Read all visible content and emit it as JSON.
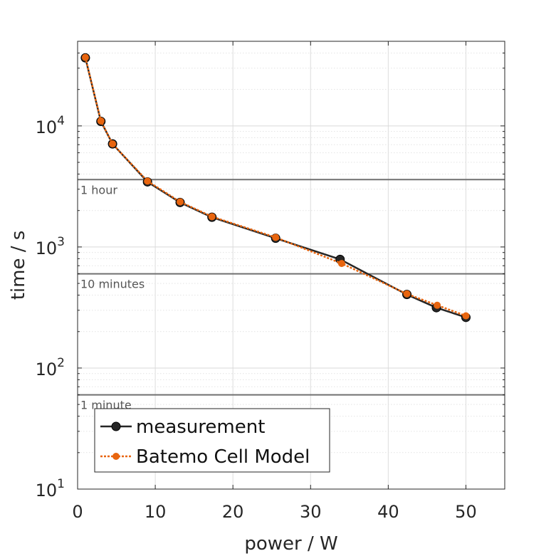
{
  "chart_data": {
    "type": "line",
    "title": "",
    "xlabel": "power / W",
    "ylabel": "time / s",
    "xlim": [
      0,
      55
    ],
    "ylim": [
      10,
      50000
    ],
    "yscale": "log",
    "grid": true,
    "x_ticks": [
      "0",
      "10",
      "20",
      "30",
      "40",
      "50"
    ],
    "y_ticks": [
      {
        "base": "10",
        "exp": "1"
      },
      {
        "base": "10",
        "exp": "2"
      },
      {
        "base": "10",
        "exp": "3"
      },
      {
        "base": "10",
        "exp": "4"
      }
    ],
    "legend_position": "bottom-left",
    "reference_lines": [
      {
        "label": "1 hour",
        "y": 3600
      },
      {
        "label": "10 minutes",
        "y": 600
      },
      {
        "label": "1 minute",
        "y": 60
      }
    ],
    "series": [
      {
        "name": "measurement",
        "color": "#262626",
        "style": "solid-marker",
        "x": [
          1,
          3,
          4.5,
          9,
          13.2,
          17.3,
          25.5,
          33.8,
          42.4,
          46.2,
          50
        ],
        "y": [
          36500,
          10900,
          7100,
          3450,
          2330,
          1760,
          1180,
          790,
          405,
          315,
          262
        ]
      },
      {
        "name": "Batemo Cell Model",
        "color": "#e8650f",
        "style": "dotted-marker",
        "x": [
          1,
          3,
          4.5,
          9,
          13.2,
          17.3,
          25.5,
          34,
          42.4,
          46.3,
          50
        ],
        "y": [
          36800,
          11000,
          7100,
          3500,
          2360,
          1780,
          1200,
          730,
          410,
          330,
          270
        ]
      }
    ]
  }
}
